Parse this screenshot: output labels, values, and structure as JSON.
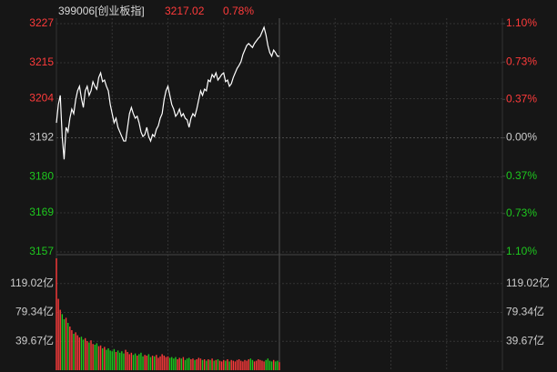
{
  "chart_data": [
    {
      "type": "line",
      "title": "399006[创业板指]",
      "last_price": "3217.02",
      "change_pct": {
        "value": 0.78,
        "label": "0.78%"
      },
      "color": "#ffffff",
      "up_color": "#ff3b3b",
      "down_color": "#1ec81e",
      "neutral_color": "#cccccc",
      "ylim": [
        3157,
        3227
      ],
      "yticks": [
        3157,
        3169,
        3180,
        3192,
        3204,
        3215,
        3227
      ],
      "y2lim": [
        -1.1,
        1.1
      ],
      "y2ticks": [
        {
          "value": -1.1,
          "label": "1.10%"
        },
        {
          "value": -0.73,
          "label": "0.73%"
        },
        {
          "value": -0.37,
          "label": "0.37%"
        },
        {
          "value": 0,
          "label": "0.00%"
        },
        {
          "value": 0.37,
          "label": "0.37%"
        },
        {
          "value": 0.73,
          "label": "0.73%"
        },
        {
          "value": 1.1,
          "label": "1.10%"
        }
      ],
      "values": [
        3196.6,
        3202.2,
        3205,
        3192.4,
        3185.4,
        3195.2,
        3193.8,
        3198,
        3200.8,
        3199.4,
        3203.6,
        3206.4,
        3207.8,
        3204.1,
        3201.3,
        3206.4,
        3207.8,
        3205,
        3206.4,
        3209.2,
        3207.8,
        3206.9,
        3210.5,
        3211.9,
        3209.2,
        3209.7,
        3207.8,
        3206.4,
        3202.2,
        3199.4,
        3196.6,
        3198,
        3195.2,
        3193.8,
        3192.4,
        3191,
        3191,
        3195.2,
        3199.4,
        3201.3,
        3199.4,
        3198,
        3198.6,
        3196.6,
        3193.8,
        3192.4,
        3193,
        3195.2,
        3192.4,
        3191,
        3193,
        3192.4,
        3194.6,
        3195.7,
        3198,
        3199.4,
        3203.6,
        3206.4,
        3207.8,
        3205,
        3202.2,
        3200.8,
        3198.6,
        3199.4,
        3200.8,
        3198.6,
        3199.4,
        3198,
        3197.5,
        3195.2,
        3198,
        3199.4,
        3198.6,
        3200.8,
        3203.6,
        3206.4,
        3205,
        3206.9,
        3206.4,
        3209.7,
        3209.2,
        3211.4,
        3210.5,
        3211.9,
        3209.7,
        3210.5,
        3211.4,
        3211.9,
        3209.2,
        3209.7,
        3207.8,
        3208.6,
        3210.5,
        3211.9,
        3213.3,
        3214.2,
        3215.3,
        3217.5,
        3218.9,
        3220.3,
        3220.9,
        3220.3,
        3219.7,
        3220.9,
        3221.7,
        3222.5,
        3223.1,
        3224.5,
        3225.9,
        3223.6,
        3220.3,
        3218.1,
        3217,
        3218.9,
        3218.1,
        3217,
        3217.02
      ]
    },
    {
      "type": "bar",
      "ylim": [
        0,
        158.7
      ],
      "yticks": [
        {
          "value": 39.67,
          "label": "39.67亿"
        },
        {
          "value": 79.34,
          "label": "79.34亿"
        },
        {
          "value": 119.02,
          "label": "119.02亿"
        }
      ],
      "values": [
        153.7,
        98,
        83,
        77,
        70,
        72,
        65,
        60,
        55,
        50,
        52,
        48,
        45,
        46,
        42,
        44,
        40,
        38,
        41,
        36,
        35,
        37,
        33,
        34,
        30,
        32,
        28,
        30,
        27,
        26,
        29,
        25,
        27,
        24,
        26,
        23,
        28,
        25,
        22,
        24,
        21,
        23,
        20,
        22,
        24,
        19,
        21,
        20,
        22,
        18,
        20,
        19,
        21,
        17,
        19,
        22,
        20,
        18,
        19,
        17,
        18,
        16,
        18,
        15,
        17,
        16,
        18,
        14,
        16,
        17,
        15,
        16,
        14,
        15,
        17,
        16,
        14,
        15,
        13,
        15,
        14,
        16,
        13,
        14,
        15,
        13,
        12,
        14,
        13,
        15,
        12,
        14,
        13,
        12,
        14,
        15,
        13,
        12,
        14,
        13,
        15,
        16,
        14,
        12,
        13,
        15,
        14,
        13,
        12,
        14,
        16,
        13,
        12,
        14,
        12,
        13,
        11
      ]
    }
  ]
}
